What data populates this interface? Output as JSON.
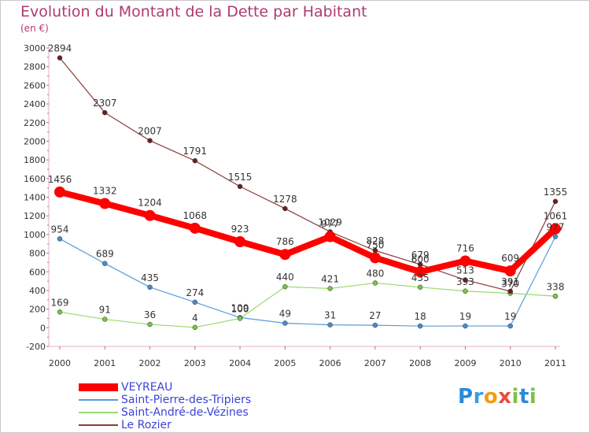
{
  "header": {
    "title": "Evolution du Montant de la Dette par Habitant",
    "subtitle": "(en €)"
  },
  "logo": {
    "text": "Proxiti",
    "letters": [
      "P",
      "r",
      "o",
      "x",
      "i",
      "t",
      "i"
    ],
    "colors": [
      "#2a8ad8",
      "#3aa0d8",
      "#f39c12",
      "#e74c3c",
      "#7cc242",
      "#2a8ad8",
      "#7cc242"
    ]
  },
  "chart_data": {
    "type": "line",
    "title": "Evolution du Montant de la Dette par Habitant",
    "subtitle": "(en €)",
    "xlabel": "",
    "ylabel": "",
    "x": [
      "2000",
      "2001",
      "2002",
      "2003",
      "2004",
      "2005",
      "2006",
      "2007",
      "2008",
      "2009",
      "2010",
      "2011"
    ],
    "ylim": [
      -200,
      3000
    ],
    "yticks": [
      "-200",
      "0",
      "200",
      "400",
      "600",
      "800",
      "1000",
      "1200",
      "1400",
      "1600",
      "1800",
      "2000",
      "2200",
      "2400",
      "2600",
      "2800",
      "3000"
    ],
    "grid": false,
    "legend_position": "bottom-left",
    "series": [
      {
        "name": "VEYREAU",
        "color": "#ff0000",
        "values": [
          1456,
          1332,
          1204,
          1068,
          923,
          786,
          977,
          750,
          600,
          716,
          609,
          1061
        ],
        "labels": [
          "1456",
          "1332",
          "1204",
          "1068",
          "923",
          "786",
          "977",
          "750",
          "600",
          "716",
          "609",
          "1061"
        ]
      },
      {
        "name": "Saint-Pierre-des-Tripiers",
        "color": "#5b9bd5",
        "values": [
          954,
          689,
          435,
          274,
          109,
          49,
          31,
          27,
          18,
          19,
          19,
          977
        ],
        "labels": [
          "954",
          "689",
          "435",
          "274",
          "109",
          "49",
          "31",
          "27",
          "18",
          "19",
          "19",
          "977"
        ]
      },
      {
        "name": "Saint-André-de-Vézines",
        "color": "#99d96f",
        "values": [
          169,
          91,
          36,
          4,
          100,
          440,
          421,
          480,
          435,
          393,
          370,
          338
        ],
        "labels": [
          "169",
          "91",
          "36",
          "4",
          "100",
          "440",
          "421",
          "480",
          "435",
          "393",
          "370",
          "338"
        ]
      },
      {
        "name": "Le Rozier",
        "color": "#8b3a3a",
        "values": [
          2894,
          2307,
          2007,
          1791,
          1515,
          1278,
          1029,
          828,
          679,
          513,
          391,
          1355
        ],
        "labels": [
          "2894",
          "2307",
          "2007",
          "1791",
          "1515",
          "1278",
          "1029",
          "828",
          "679",
          "513",
          "391",
          "1355"
        ]
      }
    ]
  }
}
